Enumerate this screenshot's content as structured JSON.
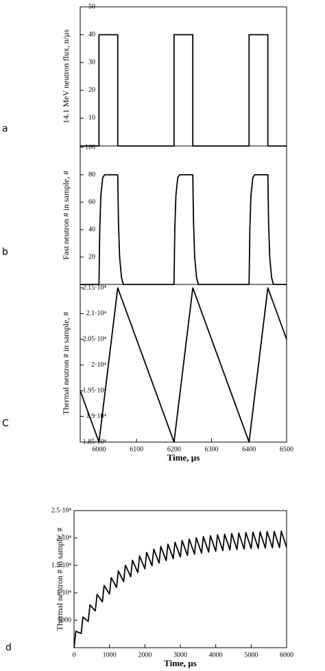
{
  "chart_data": [
    {
      "type": "line",
      "label": "a",
      "ylabel": "14.1 MeV neutron flux, n/µs",
      "xlim": [
        5950,
        6500
      ],
      "ylim": [
        0,
        50
      ],
      "yticks": [
        10,
        20,
        30,
        40,
        50
      ],
      "color": "#000000",
      "x": [
        5950,
        6000,
        6000,
        6050,
        6050,
        6200,
        6200,
        6250,
        6250,
        6400,
        6400,
        6450,
        6450,
        6500
      ],
      "values": [
        0,
        0,
        40,
        40,
        0,
        0,
        40,
        40,
        0,
        0,
        40,
        40,
        0,
        0
      ]
    },
    {
      "type": "line",
      "label": "b",
      "ylabel": "Fast neutron # in sample, #",
      "xlim": [
        5950,
        6500
      ],
      "ylim": [
        0,
        100
      ],
      "yticks": [
        20,
        40,
        60,
        80,
        100
      ],
      "color": "#000000",
      "x": [
        5950,
        6000,
        6002,
        6005,
        6010,
        6015,
        6050,
        6052,
        6055,
        6060,
        6065,
        6200,
        6202,
        6205,
        6210,
        6215,
        6250,
        6252,
        6255,
        6260,
        6265,
        6400,
        6402,
        6405,
        6410,
        6415,
        6450,
        6452,
        6455,
        6460,
        6465,
        6500
      ],
      "values": [
        0,
        0,
        40,
        65,
        78,
        80,
        80,
        45,
        20,
        5,
        0,
        0,
        40,
        65,
        78,
        80,
        80,
        45,
        20,
        5,
        0,
        0,
        40,
        65,
        78,
        80,
        80,
        45,
        20,
        5,
        0,
        0
      ]
    },
    {
      "type": "line",
      "label": "C",
      "ylabel": "Thermal neutron # in sample, #",
      "xlabel": "Time, µs",
      "xlim": [
        5950,
        6500
      ],
      "xticks": [
        6000,
        6100,
        6200,
        6300,
        6400,
        6500
      ],
      "ylim": [
        18500,
        21500
      ],
      "yticks": [
        {
          "value": 18500,
          "label": "1.85·10⁴"
        },
        {
          "value": 19000,
          "label": "1.9·10⁴"
        },
        {
          "value": 19500,
          "label": "1.95·10⁴"
        },
        {
          "value": 20000,
          "label": "2·10⁴"
        },
        {
          "value": 20500,
          "label": "2.05·10⁴"
        },
        {
          "value": 21000,
          "label": "2.1·10⁴"
        },
        {
          "value": 21500,
          "label": "2.15·10⁴"
        }
      ],
      "color": "#000000",
      "x": [
        5950,
        6000,
        6050,
        6200,
        6250,
        6400,
        6450,
        6500
      ],
      "values": [
        19500,
        18500,
        21500,
        18500,
        21500,
        18500,
        21500,
        20500
      ]
    },
    {
      "type": "line",
      "label": "d",
      "ylabel": "Thermal neutron # in sample, #",
      "xlabel": "Time, µs",
      "xlim": [
        0,
        6000
      ],
      "xticks": [
        0,
        1000,
        2000,
        3000,
        4000,
        5000,
        6000
      ],
      "ylim": [
        0,
        25000
      ],
      "yticks": [
        5000,
        {
          "value": 10000,
          "label": "1·10⁴"
        },
        {
          "value": 15000,
          "label": "1.5·10⁴"
        },
        {
          "value": 20000,
          "label": "2·10⁴"
        },
        {
          "value": 25000,
          "label": "2.5·10⁴"
        }
      ],
      "color": "#000000",
      "x": [
        0,
        50,
        200,
        250,
        400,
        450,
        600,
        650,
        800,
        850,
        1000,
        1050,
        1200,
        1250,
        1400,
        1450,
        1600,
        1650,
        1800,
        1850,
        2000,
        2050,
        2200,
        2250,
        2400,
        2450,
        2600,
        2650,
        2800,
        2850,
        3000,
        3050,
        3200,
        3250,
        3400,
        3450,
        3600,
        3650,
        3800,
        3850,
        4000,
        4050,
        4200,
        4250,
        4400,
        4450,
        4600,
        4650,
        4800,
        4850,
        5000,
        5050,
        5200,
        5250,
        5400,
        5450,
        5600,
        5650,
        5800,
        5850,
        6000
      ],
      "values": [
        0,
        3000,
        2580,
        5580,
        4800,
        7800,
        6710,
        9710,
        8360,
        11360,
        9770,
        12770,
        10990,
        13990,
        12040,
        15040,
        12940,
        15940,
        13710,
        16710,
        14380,
        17380,
        14960,
        17960,
        15450,
        18450,
        15880,
        18880,
        16240,
        19240,
        16560,
        19560,
        16830,
        19830,
        17060,
        20060,
        17260,
        20260,
        17430,
        20430,
        17580,
        20580,
        17710,
        20710,
        17820,
        20820,
        17920,
        20920,
        18000,
        21000,
        18070,
        21070,
        18130,
        21130,
        18180,
        21180,
        18220,
        21220,
        18260,
        21260,
        18300
      ]
    }
  ]
}
